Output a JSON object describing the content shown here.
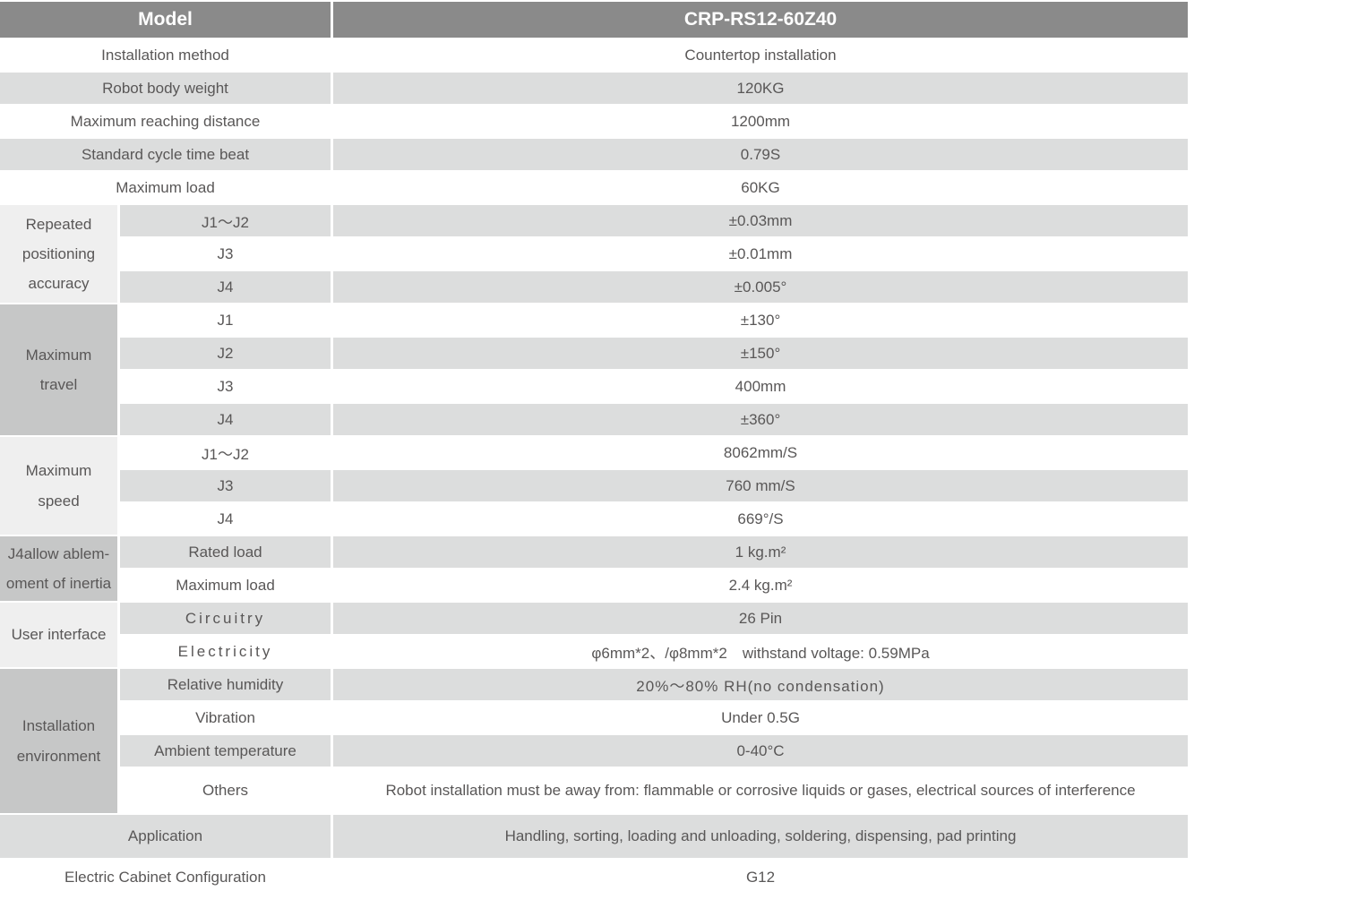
{
  "colors": {
    "header_bg": "#8a8a8a",
    "header_text": "#ffffff",
    "stripe_bg": "#dcdddd",
    "group_light_bg": "#efefef",
    "group_dark_bg": "#c6c7c7",
    "body_text": "#595757",
    "page_bg": "#ffffff"
  },
  "header": {
    "model_label": "Model",
    "model_value": "CRP-RS12-60Z40"
  },
  "simple_rows": [
    {
      "label": "Installation method",
      "value": "Countertop installation"
    },
    {
      "label": "Robot body weight",
      "value": "120KG"
    },
    {
      "label": "Maximum reaching distance",
      "value": "1200mm"
    },
    {
      "label": "Standard cycle time beat",
      "value": "0.79S"
    },
    {
      "label": "Maximum load",
      "value": "60KG"
    }
  ],
  "groups": {
    "accuracy": {
      "label": "Repeated\npositioning\naccuracy",
      "rows": [
        {
          "label": "J1～J2",
          "value": "±0.03mm"
        },
        {
          "label": "J3",
          "value": "±0.01mm"
        },
        {
          "label": "J4",
          "value": "±0.005°"
        }
      ]
    },
    "travel": {
      "label": "Maximum\ntravel",
      "rows": [
        {
          "label": "J1",
          "value": "±130°"
        },
        {
          "label": "J2",
          "value": "±150°"
        },
        {
          "label": "J3",
          "value": "400mm"
        },
        {
          "label": "J4",
          "value": "±360°"
        }
      ]
    },
    "speed": {
      "label": "Maximum speed",
      "rows": [
        {
          "label": "J1～J2",
          "value": "8062mm/S"
        },
        {
          "label": "J3",
          "value": "760 mm/S"
        },
        {
          "label": "J4",
          "value": "669°/S"
        }
      ]
    },
    "inertia": {
      "label": "J4allow ablem-\noment of inertia",
      "rows": [
        {
          "label": "Rated load",
          "value": "1 kg.m²"
        },
        {
          "label": "Maximum load",
          "value": "2.4 kg.m²"
        }
      ]
    },
    "interface": {
      "label": "User interface",
      "rows": [
        {
          "label": "Circuitry",
          "value": "26 Pin"
        },
        {
          "label": "Electricity",
          "value": "φ6mm*2、/φ8mm*2　withstand voltage: 0.59MPa"
        }
      ]
    },
    "environment": {
      "label": "Installation\nenvironment",
      "rows": [
        {
          "label": "Relative humidity",
          "value": "20%～80% RH(no condensation)"
        },
        {
          "label": "Vibration",
          "value": "Under 0.5G"
        },
        {
          "label": "Ambient temperature",
          "value": "0-40°C"
        },
        {
          "label": "Others",
          "value": "Robot installation must be away from: flammable or corrosive liquids or gases, electrical sources of interference"
        }
      ]
    }
  },
  "application": {
    "label": "Application",
    "value": "Handling, sorting, loading and unloading, soldering, dispensing, pad printing"
  },
  "cabinet": {
    "label": "Electric Cabinet Configuration",
    "value": "G12"
  }
}
